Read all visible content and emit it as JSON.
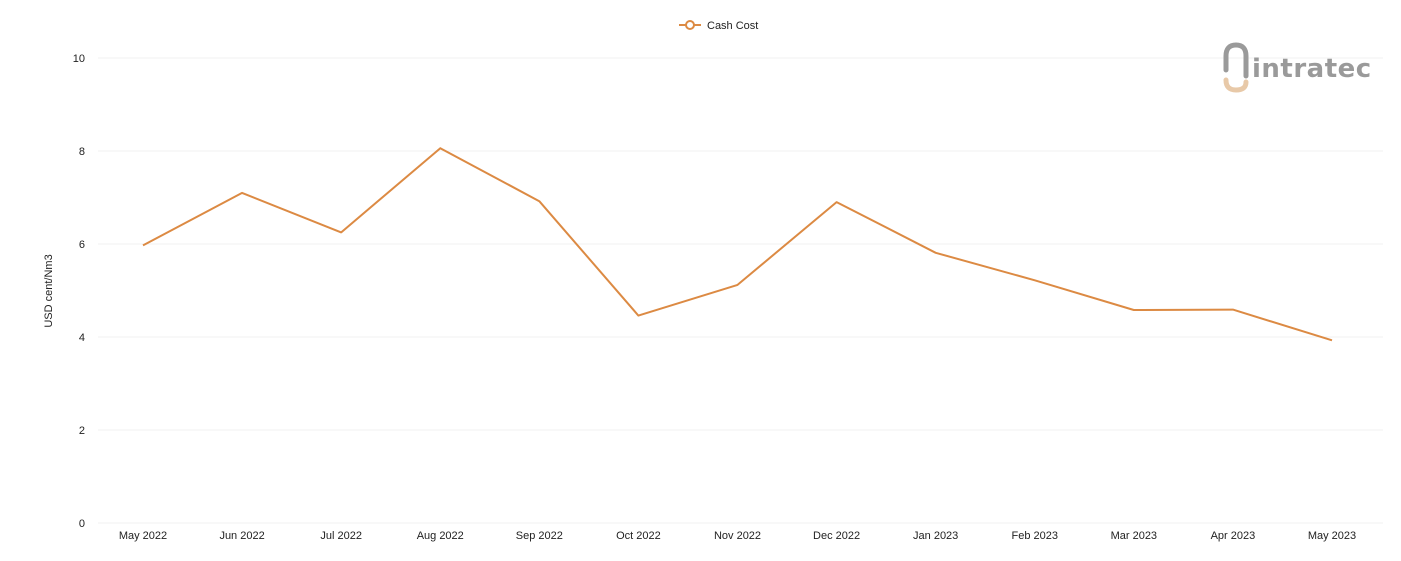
{
  "chart_data": {
    "type": "line",
    "categories": [
      "May 2022",
      "Jun 2022",
      "Jul 2022",
      "Aug 2022",
      "Sep 2022",
      "Oct 2022",
      "Nov 2022",
      "Dec 2022",
      "Jan 2023",
      "Feb 2023",
      "Mar 2023",
      "Apr 2023",
      "May 2023"
    ],
    "series": [
      {
        "name": "Cash Cost",
        "values": [
          5.97,
          7.1,
          6.25,
          8.06,
          6.92,
          4.46,
          5.12,
          6.9,
          5.81,
          5.22,
          4.58,
          4.59,
          3.93
        ],
        "color": "#dc8a43"
      }
    ],
    "ylabel": "USD cent/Nm3",
    "xlabel": "",
    "ylim": [
      0,
      10
    ],
    "yticks": [
      0,
      2,
      4,
      6,
      8,
      10
    ],
    "grid": true,
    "legend": "top-center"
  },
  "logo": {
    "text": "intratec",
    "icon": "intratec-logo-icon"
  }
}
